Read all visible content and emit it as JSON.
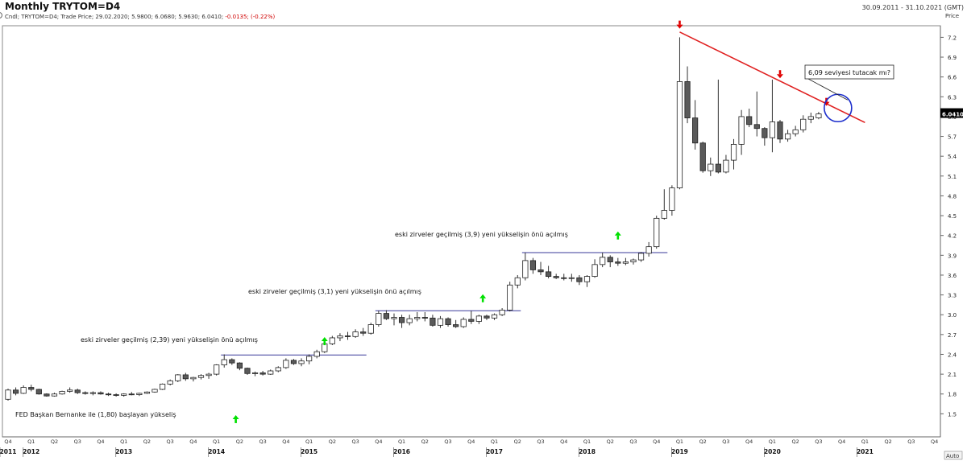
{
  "header": {
    "title": "Monthly TRYTOM=D4",
    "date_range": "30.09.2011 - 31.10.2021 (GMT)",
    "info_prefix": "Cndl; TRYTOM=D4; Trade Price; 29.02.2020; 5.9800; 6.0680; 5.9630; 6.0410; ",
    "info_change": "-0.0135; (-0.22%)"
  },
  "price_axis_label": "Price",
  "last_price": "6.0410",
  "auto_label": "Auto",
  "colors": {
    "bull_candle": "#ffffff",
    "bear_candle": "#5a5a5a",
    "trendline": "#e02020",
    "hline": "#3a3a9a",
    "up_arrow": "#00e000",
    "down_arrow": "#e00000",
    "circle": "#1a2ccc",
    "last_price_bg": "#000000"
  },
  "annotations": {
    "a1": "eski zirveler geçilmiş (2,39) yeni yükselişin önü açılmış",
    "a2": "eski zirveler geçilmiş (3,1) yeni yükselişin önü açılmış",
    "a3": "eski zirveler geçilmiş (3,9) yeni yükselişin önü açılmış",
    "a4": "FED Başkan Bernanke ile (1,80) başlayan yükseliş",
    "callout": "6,09 seviyesi tutacak mı?"
  },
  "chart_data": {
    "type": "candlestick",
    "title": "Monthly TRYTOM=D4",
    "ylabel": "Price",
    "ylim": [
      1.2,
      7.45
    ],
    "yticks": [
      1.5,
      1.8,
      2.1,
      2.4,
      2.7,
      3.0,
      3.3,
      3.6,
      3.9,
      4.2,
      4.5,
      4.8,
      5.1,
      5.4,
      5.7,
      6.0,
      6.3,
      6.6,
      6.9,
      7.2
    ],
    "quarter_labels": [
      "Q4",
      "Q1",
      "Q2",
      "Q3",
      "Q4",
      "Q1",
      "Q2",
      "Q3",
      "Q4",
      "Q1",
      "Q2",
      "Q3",
      "Q4",
      "Q1",
      "Q2",
      "Q3",
      "Q4",
      "Q1",
      "Q2",
      "Q3",
      "Q4",
      "Q1",
      "Q2",
      "Q3",
      "Q4",
      "Q1",
      "Q2",
      "Q3",
      "Q4",
      "Q1",
      "Q2",
      "Q3",
      "Q4",
      "Q1",
      "Q2",
      "Q3",
      "Q4",
      "Q1",
      "Q2",
      "Q3",
      "Q4"
    ],
    "year_labels": [
      "2011",
      "2012",
      "2013",
      "2014",
      "2015",
      "2016",
      "2017",
      "2018",
      "2019",
      "2020",
      "2021"
    ],
    "year_start_index": [
      0,
      1,
      5,
      9,
      13,
      17,
      21,
      25,
      29,
      33,
      37
    ],
    "candles": [
      [
        1.72,
        1.88,
        1.7,
        1.86
      ],
      [
        1.86,
        1.9,
        1.78,
        1.81
      ],
      [
        1.81,
        1.93,
        1.8,
        1.9
      ],
      [
        1.9,
        1.94,
        1.84,
        1.87
      ],
      [
        1.87,
        1.88,
        1.79,
        1.8
      ],
      [
        1.8,
        1.81,
        1.76,
        1.77
      ],
      [
        1.77,
        1.82,
        1.76,
        1.8
      ],
      [
        1.8,
        1.85,
        1.79,
        1.84
      ],
      [
        1.84,
        1.9,
        1.82,
        1.86
      ],
      [
        1.86,
        1.88,
        1.8,
        1.82
      ],
      [
        1.82,
        1.84,
        1.79,
        1.81
      ],
      [
        1.81,
        1.84,
        1.78,
        1.82
      ],
      [
        1.82,
        1.84,
        1.79,
        1.8
      ],
      [
        1.8,
        1.82,
        1.77,
        1.79
      ],
      [
        1.79,
        1.81,
        1.76,
        1.78
      ],
      [
        1.78,
        1.81,
        1.76,
        1.8
      ],
      [
        1.8,
        1.83,
        1.78,
        1.79
      ],
      [
        1.79,
        1.82,
        1.77,
        1.81
      ],
      [
        1.81,
        1.84,
        1.8,
        1.83
      ],
      [
        1.83,
        1.88,
        1.82,
        1.87
      ],
      [
        1.87,
        1.96,
        1.86,
        1.95
      ],
      [
        1.95,
        2.02,
        1.93,
        2.0
      ],
      [
        2.0,
        2.1,
        1.98,
        2.09
      ],
      [
        2.09,
        2.12,
        2.0,
        2.03
      ],
      [
        2.03,
        2.06,
        1.99,
        2.05
      ],
      [
        2.05,
        2.1,
        2.02,
        2.08
      ],
      [
        2.08,
        2.12,
        2.03,
        2.1
      ],
      [
        2.1,
        2.25,
        2.08,
        2.24
      ],
      [
        2.24,
        2.4,
        2.2,
        2.32
      ],
      [
        2.32,
        2.34,
        2.24,
        2.27
      ],
      [
        2.27,
        2.28,
        2.16,
        2.19
      ],
      [
        2.19,
        2.2,
        2.09,
        2.11
      ],
      [
        2.11,
        2.14,
        2.07,
        2.12
      ],
      [
        2.12,
        2.15,
        2.08,
        2.1
      ],
      [
        2.1,
        2.17,
        2.09,
        2.15
      ],
      [
        2.15,
        2.22,
        2.13,
        2.2
      ],
      [
        2.2,
        2.34,
        2.18,
        2.31
      ],
      [
        2.31,
        2.33,
        2.24,
        2.26
      ],
      [
        2.26,
        2.34,
        2.22,
        2.3
      ],
      [
        2.3,
        2.4,
        2.25,
        2.37
      ],
      [
        2.37,
        2.47,
        2.34,
        2.44
      ],
      [
        2.44,
        2.58,
        2.42,
        2.56
      ],
      [
        2.56,
        2.68,
        2.54,
        2.65
      ],
      [
        2.65,
        2.72,
        2.6,
        2.68
      ],
      [
        2.68,
        2.74,
        2.62,
        2.67
      ],
      [
        2.67,
        2.78,
        2.65,
        2.74
      ],
      [
        2.74,
        2.8,
        2.68,
        2.72
      ],
      [
        2.72,
        2.88,
        2.7,
        2.85
      ],
      [
        2.85,
        3.06,
        2.82,
        3.02
      ],
      [
        3.02,
        3.07,
        2.92,
        2.94
      ],
      [
        2.94,
        3.02,
        2.84,
        2.96
      ],
      [
        2.96,
        3.0,
        2.8,
        2.88
      ],
      [
        2.88,
        3.0,
        2.84,
        2.94
      ],
      [
        2.94,
        3.04,
        2.9,
        2.96
      ],
      [
        2.96,
        3.04,
        2.9,
        2.95
      ],
      [
        2.95,
        3.0,
        2.82,
        2.84
      ],
      [
        2.84,
        2.98,
        2.8,
        2.94
      ],
      [
        2.94,
        2.96,
        2.82,
        2.85
      ],
      [
        2.85,
        2.92,
        2.8,
        2.82
      ],
      [
        2.82,
        2.96,
        2.8,
        2.93
      ],
      [
        2.93,
        3.06,
        2.86,
        2.9
      ],
      [
        2.9,
        3.0,
        2.86,
        2.98
      ],
      [
        2.98,
        3.0,
        2.92,
        2.95
      ],
      [
        2.95,
        3.02,
        2.92,
        3.0
      ],
      [
        3.0,
        3.1,
        2.98,
        3.07
      ],
      [
        3.07,
        3.5,
        3.05,
        3.45
      ],
      [
        3.45,
        3.6,
        3.4,
        3.56
      ],
      [
        3.56,
        3.94,
        3.52,
        3.82
      ],
      [
        3.82,
        3.86,
        3.62,
        3.68
      ],
      [
        3.68,
        3.8,
        3.6,
        3.65
      ],
      [
        3.65,
        3.74,
        3.55,
        3.58
      ],
      [
        3.58,
        3.62,
        3.54,
        3.56
      ],
      [
        3.56,
        3.62,
        3.52,
        3.55
      ],
      [
        3.55,
        3.62,
        3.5,
        3.56
      ],
      [
        3.56,
        3.6,
        3.45,
        3.5
      ],
      [
        3.5,
        3.6,
        3.42,
        3.58
      ],
      [
        3.58,
        3.84,
        3.56,
        3.76
      ],
      [
        3.76,
        3.94,
        3.72,
        3.87
      ],
      [
        3.87,
        3.9,
        3.72,
        3.8
      ],
      [
        3.8,
        3.86,
        3.74,
        3.78
      ],
      [
        3.78,
        3.86,
        3.75,
        3.8
      ],
      [
        3.8,
        3.85,
        3.76,
        3.83
      ],
      [
        3.83,
        3.95,
        3.8,
        3.93
      ],
      [
        3.93,
        4.1,
        3.88,
        4.03
      ],
      [
        4.03,
        4.5,
        4.0,
        4.46
      ],
      [
        4.46,
        4.9,
        4.44,
        4.58
      ],
      [
        4.58,
        4.96,
        4.5,
        4.92
      ],
      [
        4.92,
        7.2,
        4.9,
        6.53
      ],
      [
        6.53,
        6.76,
        5.9,
        5.98
      ],
      [
        5.98,
        6.25,
        5.5,
        5.6
      ],
      [
        5.6,
        5.62,
        5.15,
        5.18
      ],
      [
        5.18,
        5.38,
        5.1,
        5.28
      ],
      [
        5.28,
        6.56,
        5.14,
        5.16
      ],
      [
        5.16,
        5.42,
        5.14,
        5.34
      ],
      [
        5.34,
        5.66,
        5.2,
        5.58
      ],
      [
        5.58,
        6.1,
        5.42,
        6.0
      ],
      [
        6.0,
        6.12,
        5.84,
        5.88
      ],
      [
        5.88,
        6.38,
        5.7,
        5.82
      ],
      [
        5.82,
        5.84,
        5.56,
        5.68
      ],
      [
        5.68,
        6.56,
        5.46,
        5.92
      ],
      [
        5.92,
        5.95,
        5.6,
        5.66
      ],
      [
        5.66,
        5.8,
        5.62,
        5.74
      ],
      [
        5.74,
        5.86,
        5.7,
        5.8
      ],
      [
        5.8,
        6.02,
        5.76,
        5.96
      ],
      [
        5.96,
        6.06,
        5.9,
        6.0
      ],
      [
        5.98,
        6.07,
        5.96,
        6.04
      ]
    ],
    "trendline": {
      "from": [
        87.0,
        7.28
      ],
      "to": [
        111.0,
        5.91
      ]
    },
    "horizontal_levels": [
      {
        "value": 2.39,
        "from_index": 28,
        "to_index": 46
      },
      {
        "value": 3.06,
        "from_index": 48,
        "to_index": 66
      },
      {
        "value": 3.94,
        "from_index": 67,
        "to_index": 85
      }
    ],
    "down_arrows": [
      [
        87.0,
        7.38
      ],
      [
        100.0,
        6.63
      ],
      [
        106.0,
        6.21
      ]
    ],
    "up_arrows": [
      [
        41.0,
        2.6
      ],
      [
        29.5,
        1.42
      ],
      [
        61.5,
        3.25
      ],
      [
        79.0,
        4.2
      ]
    ],
    "circle_center": [
      107.5,
      6.13
    ]
  }
}
